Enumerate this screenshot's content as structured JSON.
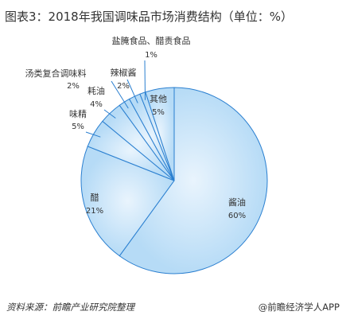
{
  "title": "图表3：2018年我国调味品市场消费结构（单位：%）",
  "footer": {
    "source": "资料来源：前瞻产业研究院整理",
    "brand": "@前瞻经济学人APP"
  },
  "colors": {
    "slice_fill_light": "#e9f4fd",
    "slice_fill_dark": "#b6dbf6",
    "slice_stroke": "#2a7fd0",
    "leader_line": "#2a7fd0"
  },
  "chart_data": {
    "type": "pie",
    "title": "图表3：2018年我国调味品市场消费结构（单位：%）",
    "unit": "%",
    "slices": [
      {
        "label": "酱油",
        "value": 60,
        "value_label": "60%"
      },
      {
        "label": "醋",
        "value": 21,
        "value_label": "21%"
      },
      {
        "label": "味精",
        "value": 5,
        "value_label": "5%"
      },
      {
        "label": "耗油",
        "value": 4,
        "value_label": "4%"
      },
      {
        "label": "汤类复合调味料",
        "value": 2,
        "value_label": "2%"
      },
      {
        "label": "辣椒酱",
        "value": 2,
        "value_label": "2%"
      },
      {
        "label": "盐腌食品、醋责食品",
        "value": 1,
        "value_label": "1%"
      },
      {
        "label": "其他",
        "value": 5,
        "value_label": "5%"
      }
    ]
  }
}
